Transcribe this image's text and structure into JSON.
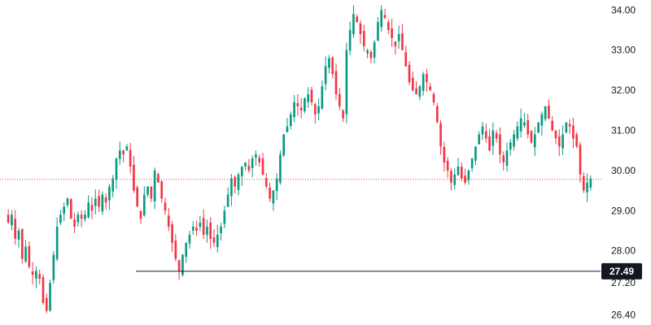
{
  "chart_data": {
    "type": "candlestick",
    "title": "",
    "xlabel": "",
    "ylabel": "",
    "ylim": [
      26.15,
      34.25
    ],
    "y_axis_side": "right",
    "grid": false,
    "y_ticks": [
      {
        "value": 34.0,
        "label": "34.00"
      },
      {
        "value": 33.0,
        "label": "33.00"
      },
      {
        "value": 32.0,
        "label": "32.00"
      },
      {
        "value": 31.0,
        "label": "31.00"
      },
      {
        "value": 30.0,
        "label": "30.00"
      },
      {
        "value": 29.0,
        "label": "29.00"
      },
      {
        "value": 28.0,
        "label": "28.00"
      },
      {
        "value": 27.2,
        "label": "27.20"
      },
      {
        "value": 26.4,
        "label": "26.40"
      }
    ],
    "horizontal_line": {
      "value": 27.49,
      "label": "27.49",
      "color": "#131722"
    },
    "last_price_line": {
      "value": 29.78,
      "color": "#f23645"
    },
    "colors": {
      "up": "#089981",
      "down": "#f23645",
      "axis_text": "#131722"
    },
    "closes": [
      28.7,
      28.9,
      28.3,
      28.5,
      27.8,
      28.1,
      27.6,
      27.4,
      27.5,
      27.3,
      26.7,
      26.5,
      27.2,
      27.9,
      28.6,
      28.9,
      29.1,
      29.3,
      28.8,
      28.6,
      28.9,
      28.8,
      28.9,
      29.2,
      29.0,
      29.3,
      29.1,
      29.4,
      29.2,
      29.6,
      29.8,
      30.3,
      30.5,
      30.4,
      30.6,
      30.1,
      29.5,
      29.1,
      28.8,
      29.4,
      29.6,
      29.3,
      30.0,
      29.7,
      29.3,
      29.0,
      28.6,
      28.2,
      27.8,
      27.5,
      27.9,
      28.2,
      28.4,
      28.6,
      28.5,
      28.7,
      28.4,
      28.6,
      28.3,
      28.2,
      28.4,
      28.6,
      29.0,
      29.4,
      29.8,
      29.6,
      29.9,
      30.1,
      30.2,
      30.0,
      30.3,
      30.4,
      30.2,
      29.9,
      29.6,
      29.3,
      29.5,
      29.8,
      30.4,
      30.9,
      31.1,
      31.4,
      31.7,
      31.6,
      31.5,
      31.8,
      31.9,
      31.7,
      31.4,
      31.6,
      32.1,
      32.6,
      32.8,
      32.4,
      31.9,
      31.6,
      31.3,
      33.0,
      33.5,
      33.9,
      33.7,
      33.4,
      33.1,
      33.0,
      32.8,
      33.2,
      33.7,
      34.0,
      33.8,
      33.5,
      33.3,
      33.1,
      33.4,
      33.0,
      32.6,
      32.2,
      32.0,
      31.9,
      32.1,
      32.4,
      32.2,
      32.0,
      31.7,
      31.2,
      30.6,
      30.2,
      30.0,
      29.7,
      29.9,
      30.1,
      29.8,
      29.7,
      30.0,
      30.3,
      30.6,
      30.9,
      31.1,
      30.8,
      30.5,
      31.0,
      30.8,
      30.4,
      30.2,
      30.5,
      30.7,
      30.9,
      31.1,
      31.3,
      31.2,
      30.9,
      30.7,
      30.9,
      31.2,
      31.4,
      31.6,
      31.3,
      31.0,
      30.8,
      30.6,
      30.9,
      31.2,
      31.1,
      30.8,
      30.6,
      29.9,
      29.5,
      29.7,
      29.8
    ]
  }
}
